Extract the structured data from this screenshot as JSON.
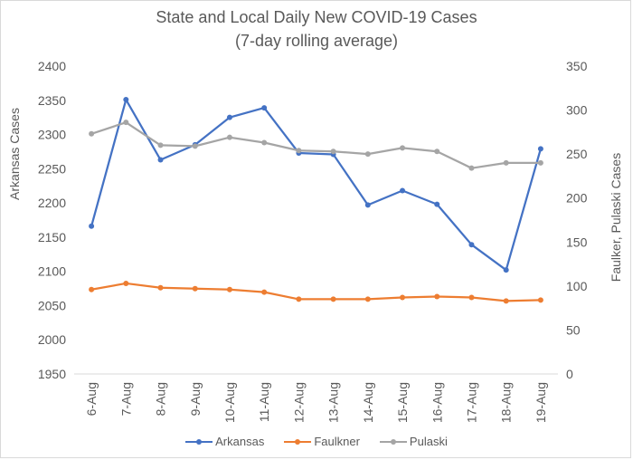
{
  "chart_data": {
    "type": "line",
    "title": "State and Local Daily New COVID-19 Cases",
    "subtitle": "(7-day rolling average)",
    "x": [
      "6-Aug",
      "7-Aug",
      "8-Aug",
      "9-Aug",
      "10-Aug",
      "11-Aug",
      "12-Aug",
      "13-Aug",
      "14-Aug",
      "15-Aug",
      "16-Aug",
      "17-Aug",
      "18-Aug",
      "19-Aug"
    ],
    "ylabel": "Arkansas Cases",
    "y2label": "Faulker, Pulaski Cases",
    "ylim": [
      1950,
      2400
    ],
    "y_ticks": [
      1950,
      2000,
      2050,
      2100,
      2150,
      2200,
      2250,
      2300,
      2350,
      2400
    ],
    "y2lim": [
      0,
      350
    ],
    "y2_ticks": [
      0,
      50,
      100,
      150,
      200,
      250,
      300,
      350
    ],
    "grid": false,
    "legend_position": "bottom",
    "series": [
      {
        "name": "Arkansas",
        "axis": "left",
        "color": "#4472c4",
        "values": [
          2166,
          2351,
          2263,
          2285,
          2325,
          2339,
          2273,
          2271,
          2197,
          2218,
          2198,
          2139,
          2102,
          2279
        ]
      },
      {
        "name": "Faulkner",
        "axis": "right",
        "color": "#ed7d31",
        "values": [
          96,
          103,
          98,
          97,
          96,
          93,
          85,
          85,
          85,
          87,
          88,
          87,
          83,
          84
        ]
      },
      {
        "name": "Pulaski",
        "axis": "right",
        "color": "#a5a5a5",
        "values": [
          273,
          286,
          260,
          259,
          269,
          263,
          254,
          253,
          250,
          257,
          253,
          234,
          240,
          240
        ]
      }
    ]
  }
}
